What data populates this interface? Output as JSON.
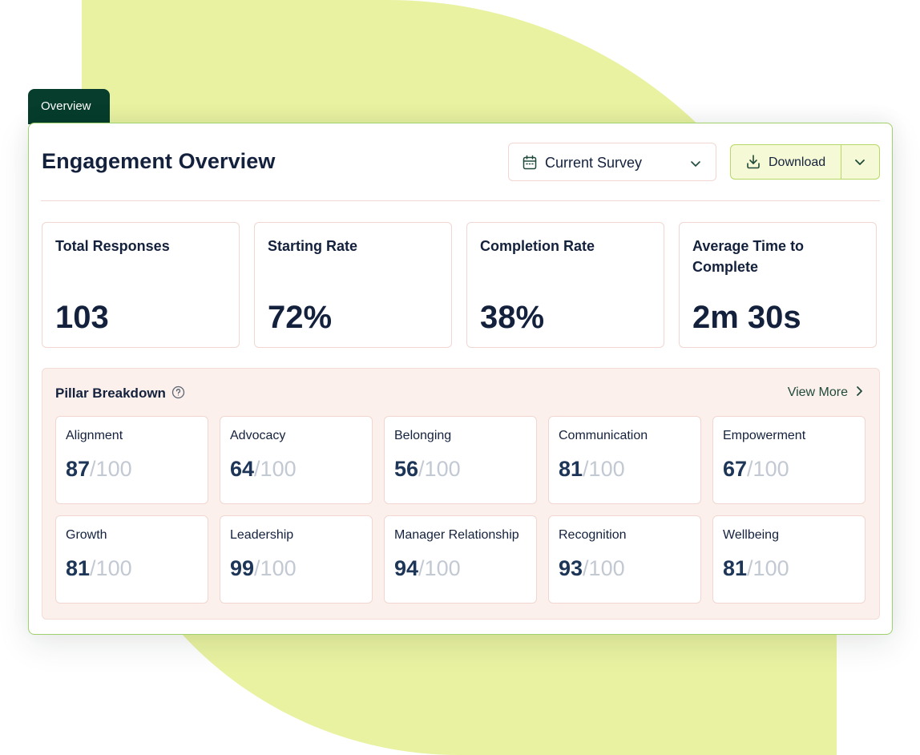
{
  "tab": {
    "label": "Overview"
  },
  "header": {
    "title": "Engagement Overview",
    "survey_select": {
      "value": "Current Survey",
      "icon": "calendar-icon"
    },
    "download": {
      "label": "Download",
      "icon": "download-icon"
    }
  },
  "metrics": [
    {
      "label": "Total Responses",
      "value": "103"
    },
    {
      "label": "Starting Rate",
      "value": "72%"
    },
    {
      "label": "Completion Rate",
      "value": "38%"
    },
    {
      "label": "Average Time to Complete",
      "value": "2m 30s"
    }
  ],
  "pillars": {
    "title": "Pillar Breakdown",
    "view_more": "View More",
    "items": [
      {
        "label": "Alignment",
        "score": "87",
        "max": "/100"
      },
      {
        "label": "Advocacy",
        "score": "64",
        "max": "/100"
      },
      {
        "label": "Belonging",
        "score": "56",
        "max": "/100"
      },
      {
        "label": "Communication",
        "score": "81",
        "max": "/100"
      },
      {
        "label": "Empowerment",
        "score": "67",
        "max": "/100"
      },
      {
        "label": "Growth",
        "score": "81",
        "max": "/100"
      },
      {
        "label": "Leadership",
        "score": "99",
        "max": "/100"
      },
      {
        "label": "Manager Relationship",
        "score": "94",
        "max": "/100"
      },
      {
        "label": "Recognition",
        "score": "93",
        "max": "/100"
      },
      {
        "label": "Wellbeing",
        "score": "81",
        "max": "/100"
      }
    ]
  },
  "colors": {
    "brand_dark_green": "#063d2c",
    "accent_lime": "#e9f2a1",
    "panel_peach": "#fcf0ec",
    "text_navy": "#14213d",
    "muted_gray": "#c3c9d3"
  }
}
